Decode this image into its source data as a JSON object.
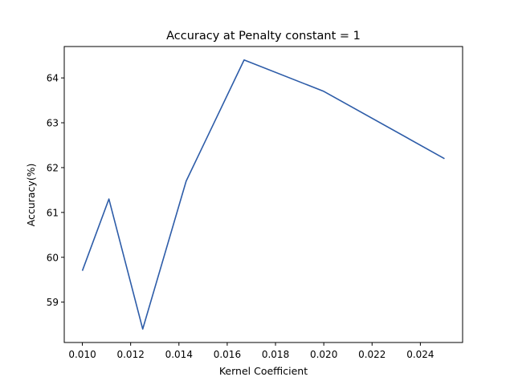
{
  "chart_data": {
    "type": "line",
    "title": "Accuracy at Penalty constant = 1",
    "xlabel": "Kernel Coefficient",
    "ylabel": "Accuracy(%)",
    "xlim": [
      0.00925,
      0.02575
    ],
    "ylim": [
      58.1,
      64.7
    ],
    "x_ticks": [
      0.01,
      0.012,
      0.014,
      0.016,
      0.018,
      0.02,
      0.022,
      0.024
    ],
    "x_tick_labels": [
      "0.010",
      "0.012",
      "0.014",
      "0.016",
      "0.018",
      "0.020",
      "0.022",
      "0.024"
    ],
    "y_ticks": [
      59,
      60,
      61,
      62,
      63,
      64
    ],
    "y_tick_labels": [
      "59",
      "60",
      "61",
      "62",
      "63",
      "64"
    ],
    "grid": false,
    "series": [
      {
        "color": "#2d5ca8",
        "x": [
          0.01,
          0.0111,
          0.0125,
          0.0143,
          0.0167,
          0.02,
          0.025
        ],
        "y": [
          59.7,
          61.3,
          58.4,
          61.7,
          64.4,
          63.7,
          62.2
        ]
      }
    ]
  }
}
